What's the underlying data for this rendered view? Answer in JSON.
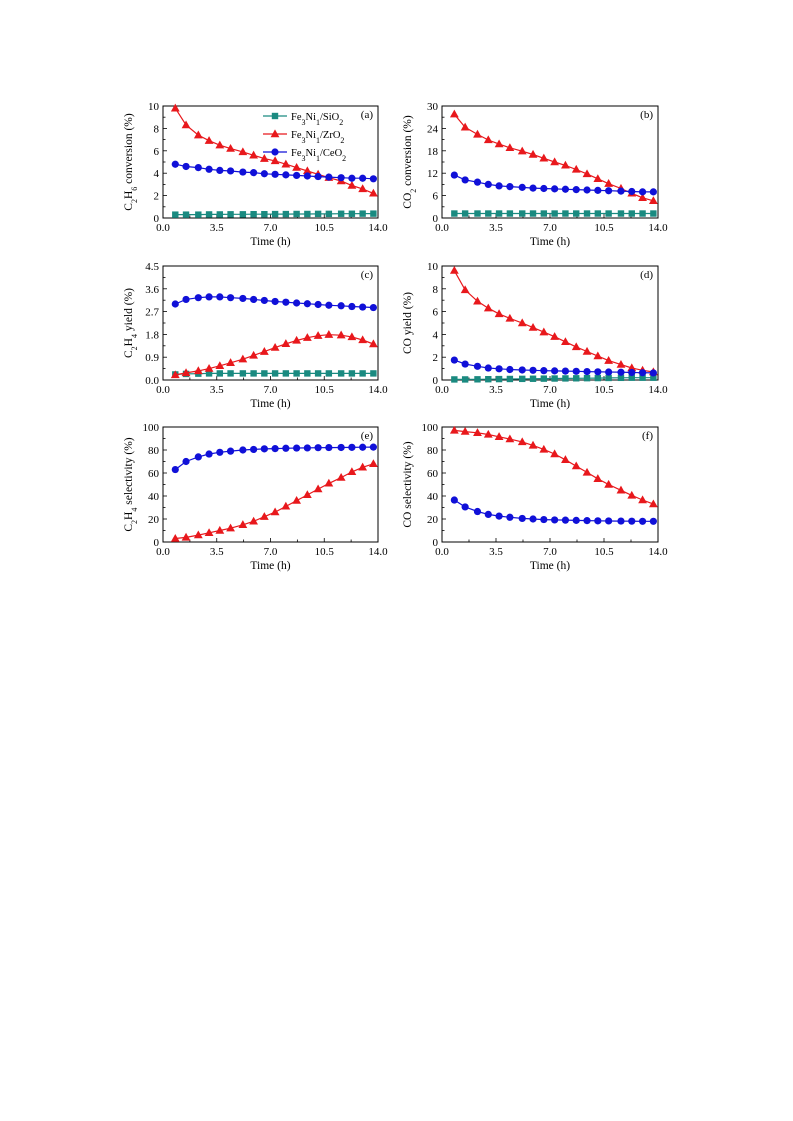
{
  "colors": {
    "SiO2": "#1a8a80",
    "ZrO2": "#e8181c",
    "CeO2": "#1010d8"
  },
  "legend": [
    {
      "key": "SiO2",
      "parts": [
        "Fe",
        "3",
        "Ni",
        "1",
        "/SiO",
        "2"
      ],
      "marker": "square"
    },
    {
      "key": "ZrO2",
      "parts": [
        "Fe",
        "3",
        "Ni",
        "1",
        "/ZrO",
        "2"
      ],
      "marker": "triangle"
    },
    {
      "key": "CeO2",
      "parts": [
        "Fe",
        "3",
        "Ni",
        "1",
        "/CeO",
        "2"
      ],
      "marker": "circle"
    }
  ],
  "chart_data": [
    {
      "id": "a",
      "label": "(a)",
      "type": "line",
      "ylabel_parts": [
        "C",
        "2",
        "H",
        "6",
        " conversion (%)"
      ],
      "xlabel": "Time (h)",
      "xlim": [
        0,
        14
      ],
      "ylim": [
        0,
        10
      ],
      "xticks": [
        "0.0",
        "3.5",
        "7.0",
        "10.5",
        "14.0"
      ],
      "yticks": [
        "0",
        "2",
        "4",
        "6",
        "8",
        "10"
      ],
      "series": [
        {
          "key": "SiO2",
          "marker": "square",
          "x": [
            0.8,
            1.5,
            2.3,
            3.0,
            3.7,
            4.4,
            5.2,
            5.9,
            6.6,
            7.3,
            8.0,
            8.7,
            9.4,
            10.1,
            10.8,
            11.6,
            12.3,
            13.0,
            13.7
          ],
          "y": [
            0.3,
            0.3,
            0.3,
            0.32,
            0.32,
            0.33,
            0.33,
            0.34,
            0.34,
            0.35,
            0.35,
            0.36,
            0.36,
            0.37,
            0.37,
            0.38,
            0.38,
            0.39,
            0.39
          ]
        },
        {
          "key": "ZrO2",
          "marker": "triangle",
          "x": [
            0.8,
            1.5,
            2.3,
            3.0,
            3.7,
            4.4,
            5.2,
            5.9,
            6.6,
            7.3,
            8.0,
            8.7,
            9.4,
            10.1,
            10.8,
            11.6,
            12.3,
            13.0,
            13.7
          ],
          "y": [
            9.8,
            8.3,
            7.4,
            6.9,
            6.5,
            6.2,
            5.9,
            5.6,
            5.3,
            5.1,
            4.8,
            4.5,
            4.2,
            3.9,
            3.6,
            3.3,
            2.9,
            2.6,
            2.2
          ]
        },
        {
          "key": "CeO2",
          "marker": "circle",
          "x": [
            0.8,
            1.5,
            2.3,
            3.0,
            3.7,
            4.4,
            5.2,
            5.9,
            6.6,
            7.3,
            8.0,
            8.7,
            9.4,
            10.1,
            10.8,
            11.6,
            12.3,
            13.0,
            13.7
          ],
          "y": [
            4.8,
            4.6,
            4.5,
            4.35,
            4.25,
            4.2,
            4.1,
            4.05,
            3.95,
            3.9,
            3.85,
            3.8,
            3.75,
            3.7,
            3.65,
            3.6,
            3.55,
            3.55,
            3.5
          ]
        }
      ]
    },
    {
      "id": "b",
      "label": "(b)",
      "type": "line",
      "ylabel_parts": [
        "CO",
        "2",
        " conversion (%)"
      ],
      "xlabel": "Time (h)",
      "xlim": [
        0,
        14
      ],
      "ylim": [
        0,
        30
      ],
      "xticks": [
        "0.0",
        "3.5",
        "7.0",
        "10.5",
        "14.0"
      ],
      "yticks": [
        "0",
        "6",
        "12",
        "18",
        "24",
        "30"
      ],
      "series": [
        {
          "key": "SiO2",
          "marker": "square",
          "x": [
            0.8,
            1.5,
            2.3,
            3.0,
            3.7,
            4.4,
            5.2,
            5.9,
            6.6,
            7.3,
            8.0,
            8.7,
            9.4,
            10.1,
            10.8,
            11.6,
            12.3,
            13.0,
            13.7
          ],
          "y": [
            1.2,
            1.2,
            1.2,
            1.2,
            1.2,
            1.2,
            1.2,
            1.2,
            1.2,
            1.2,
            1.2,
            1.2,
            1.2,
            1.2,
            1.2,
            1.2,
            1.2,
            1.2,
            1.2
          ]
        },
        {
          "key": "ZrO2",
          "marker": "triangle",
          "x": [
            0.8,
            1.5,
            2.3,
            3.0,
            3.7,
            4.4,
            5.2,
            5.9,
            6.6,
            7.3,
            8.0,
            8.7,
            9.4,
            10.1,
            10.8,
            11.6,
            12.3,
            13.0,
            13.7
          ],
          "y": [
            27.8,
            24.3,
            22.4,
            20.9,
            19.8,
            18.8,
            17.9,
            17.0,
            16.0,
            15.0,
            14.1,
            13.0,
            11.8,
            10.5,
            9.2,
            7.9,
            6.6,
            5.4,
            4.6
          ]
        },
        {
          "key": "CeO2",
          "marker": "circle",
          "x": [
            0.8,
            1.5,
            2.3,
            3.0,
            3.7,
            4.4,
            5.2,
            5.9,
            6.6,
            7.3,
            8.0,
            8.7,
            9.4,
            10.1,
            10.8,
            11.6,
            12.3,
            13.0,
            13.7
          ],
          "y": [
            11.5,
            10.2,
            9.6,
            9.0,
            8.6,
            8.4,
            8.2,
            8.0,
            7.9,
            7.8,
            7.7,
            7.6,
            7.5,
            7.4,
            7.3,
            7.2,
            7.1,
            7.0,
            7.0
          ]
        }
      ]
    },
    {
      "id": "c",
      "label": "(c)",
      "type": "line",
      "ylabel_parts": [
        "C",
        "2",
        "H",
        "4",
        " yield (%)"
      ],
      "xlabel": "Time (h)",
      "xlim": [
        0,
        14
      ],
      "ylim": [
        0,
        4.5
      ],
      "xticks": [
        "0.0",
        "3.5",
        "7.0",
        "10.5",
        "14.0"
      ],
      "yticks": [
        "0.0",
        "0.9",
        "1.8",
        "2.7",
        "3.6",
        "4.5"
      ],
      "series": [
        {
          "key": "SiO2",
          "marker": "square",
          "x": [
            0.8,
            1.5,
            2.3,
            3.0,
            3.7,
            4.4,
            5.2,
            5.9,
            6.6,
            7.3,
            8.0,
            8.7,
            9.4,
            10.1,
            10.8,
            11.6,
            12.3,
            13.0,
            13.7
          ],
          "y": [
            0.22,
            0.24,
            0.25,
            0.26,
            0.26,
            0.26,
            0.26,
            0.26,
            0.26,
            0.26,
            0.26,
            0.26,
            0.26,
            0.26,
            0.26,
            0.26,
            0.26,
            0.26,
            0.26
          ]
        },
        {
          "key": "ZrO2",
          "marker": "triangle",
          "x": [
            0.8,
            1.5,
            2.3,
            3.0,
            3.7,
            4.4,
            5.2,
            5.9,
            6.6,
            7.3,
            8.0,
            8.7,
            9.4,
            10.1,
            10.8,
            11.6,
            12.3,
            13.0,
            13.7
          ],
          "y": [
            0.2,
            0.28,
            0.36,
            0.45,
            0.56,
            0.68,
            0.82,
            0.97,
            1.12,
            1.28,
            1.43,
            1.56,
            1.67,
            1.75,
            1.79,
            1.77,
            1.7,
            1.58,
            1.42
          ]
        },
        {
          "key": "CeO2",
          "marker": "circle",
          "x": [
            0.8,
            1.5,
            2.3,
            3.0,
            3.7,
            4.4,
            5.2,
            5.9,
            6.6,
            7.3,
            8.0,
            8.7,
            9.4,
            10.1,
            10.8,
            11.6,
            12.3,
            13.0,
            13.7
          ],
          "y": [
            3.0,
            3.18,
            3.25,
            3.28,
            3.28,
            3.25,
            3.22,
            3.18,
            3.14,
            3.1,
            3.07,
            3.04,
            3.01,
            2.98,
            2.95,
            2.93,
            2.9,
            2.88,
            2.86
          ]
        }
      ]
    },
    {
      "id": "d",
      "label": "(d)",
      "type": "line",
      "ylabel_parts": [
        "CO yield (%)"
      ],
      "xlabel": "Time (h)",
      "xlim": [
        0,
        14
      ],
      "ylim": [
        0,
        10
      ],
      "xticks": [
        "0.0",
        "3.5",
        "7.0",
        "10.5",
        "14.0"
      ],
      "yticks": [
        "0",
        "2",
        "4",
        "6",
        "8",
        "10"
      ],
      "series": [
        {
          "key": "SiO2",
          "marker": "square",
          "x": [
            0.8,
            1.5,
            2.3,
            3.0,
            3.7,
            4.4,
            5.2,
            5.9,
            6.6,
            7.3,
            8.0,
            8.7,
            9.4,
            10.1,
            10.8,
            11.6,
            12.3,
            13.0,
            13.7
          ],
          "y": [
            0.05,
            0.05,
            0.06,
            0.07,
            0.08,
            0.09,
            0.1,
            0.11,
            0.12,
            0.13,
            0.14,
            0.15,
            0.16,
            0.17,
            0.18,
            0.19,
            0.2,
            0.2,
            0.2
          ]
        },
        {
          "key": "ZrO2",
          "marker": "triangle",
          "x": [
            0.8,
            1.5,
            2.3,
            3.0,
            3.7,
            4.4,
            5.2,
            5.9,
            6.6,
            7.3,
            8.0,
            8.7,
            9.4,
            10.1,
            10.8,
            11.6,
            12.3,
            13.0,
            13.7
          ],
          "y": [
            9.6,
            7.9,
            6.9,
            6.3,
            5.8,
            5.4,
            5.0,
            4.6,
            4.2,
            3.8,
            3.35,
            2.9,
            2.5,
            2.1,
            1.7,
            1.35,
            1.05,
            0.85,
            0.7
          ]
        },
        {
          "key": "CeO2",
          "marker": "circle",
          "x": [
            0.8,
            1.5,
            2.3,
            3.0,
            3.7,
            4.4,
            5.2,
            5.9,
            6.6,
            7.3,
            8.0,
            8.7,
            9.4,
            10.1,
            10.8,
            11.6,
            12.3,
            13.0,
            13.7
          ],
          "y": [
            1.75,
            1.4,
            1.2,
            1.05,
            0.98,
            0.92,
            0.88,
            0.85,
            0.82,
            0.8,
            0.78,
            0.76,
            0.74,
            0.72,
            0.7,
            0.68,
            0.66,
            0.64,
            0.62
          ]
        }
      ]
    },
    {
      "id": "e",
      "label": "(e)",
      "type": "line",
      "ylabel_parts": [
        "C",
        "2",
        "H",
        "4",
        " selectivity (%)"
      ],
      "xlabel": "Time (h)",
      "xlim": [
        0,
        14
      ],
      "ylim": [
        0,
        100
      ],
      "xticks": [
        "0.0",
        "3.5",
        "7.0",
        "10.5",
        "14.0"
      ],
      "yticks": [
        "0",
        "20",
        "40",
        "60",
        "80",
        "100"
      ],
      "series": [
        {
          "key": "ZrO2",
          "marker": "triangle",
          "x": [
            0.8,
            1.5,
            2.3,
            3.0,
            3.7,
            4.4,
            5.2,
            5.9,
            6.6,
            7.3,
            8.0,
            8.7,
            9.4,
            10.1,
            10.8,
            11.6,
            12.3,
            13.0,
            13.7
          ],
          "y": [
            3,
            4,
            6,
            8,
            10,
            12,
            15,
            18,
            22,
            26,
            31,
            36,
            41,
            46,
            51,
            56,
            61,
            65,
            68
          ]
        },
        {
          "key": "CeO2",
          "marker": "circle",
          "x": [
            0.8,
            1.5,
            2.3,
            3.0,
            3.7,
            4.4,
            5.2,
            5.9,
            6.6,
            7.3,
            8.0,
            8.7,
            9.4,
            10.1,
            10.8,
            11.6,
            12.3,
            13.0,
            13.7
          ],
          "y": [
            63,
            70,
            74,
            76.5,
            78,
            79,
            80,
            80.5,
            81,
            81.2,
            81.5,
            81.7,
            81.8,
            82,
            82.1,
            82.2,
            82.3,
            82.4,
            82.5
          ]
        }
      ]
    },
    {
      "id": "f",
      "label": "(f)",
      "type": "line",
      "ylabel_parts": [
        "CO selectivity (%)"
      ],
      "xlabel": "Time (h)",
      "xlim": [
        0,
        14
      ],
      "ylim": [
        0,
        100
      ],
      "xticks": [
        "0.0",
        "3.5",
        "7.0",
        "10.5",
        "14.0"
      ],
      "yticks": [
        "0",
        "20",
        "40",
        "60",
        "80",
        "100"
      ],
      "series": [
        {
          "key": "ZrO2",
          "marker": "triangle",
          "x": [
            0.8,
            1.5,
            2.3,
            3.0,
            3.7,
            4.4,
            5.2,
            5.9,
            6.6,
            7.3,
            8.0,
            8.7,
            9.4,
            10.1,
            10.8,
            11.6,
            12.3,
            13.0,
            13.7
          ],
          "y": [
            97,
            96,
            95,
            93.5,
            91.5,
            89.5,
            87,
            84,
            80.5,
            76.5,
            71.5,
            66,
            60.5,
            55,
            50,
            45,
            40.5,
            36.5,
            33
          ]
        },
        {
          "key": "CeO2",
          "marker": "circle",
          "x": [
            0.8,
            1.5,
            2.3,
            3.0,
            3.7,
            4.4,
            5.2,
            5.9,
            6.6,
            7.3,
            8.0,
            8.7,
            9.4,
            10.1,
            10.8,
            11.6,
            12.3,
            13.0,
            13.7
          ],
          "y": [
            36.5,
            30.5,
            26.5,
            24,
            22.5,
            21.5,
            20.5,
            20,
            19.5,
            19.2,
            19,
            18.8,
            18.6,
            18.4,
            18.3,
            18.2,
            18.1,
            18,
            18
          ]
        }
      ]
    }
  ]
}
